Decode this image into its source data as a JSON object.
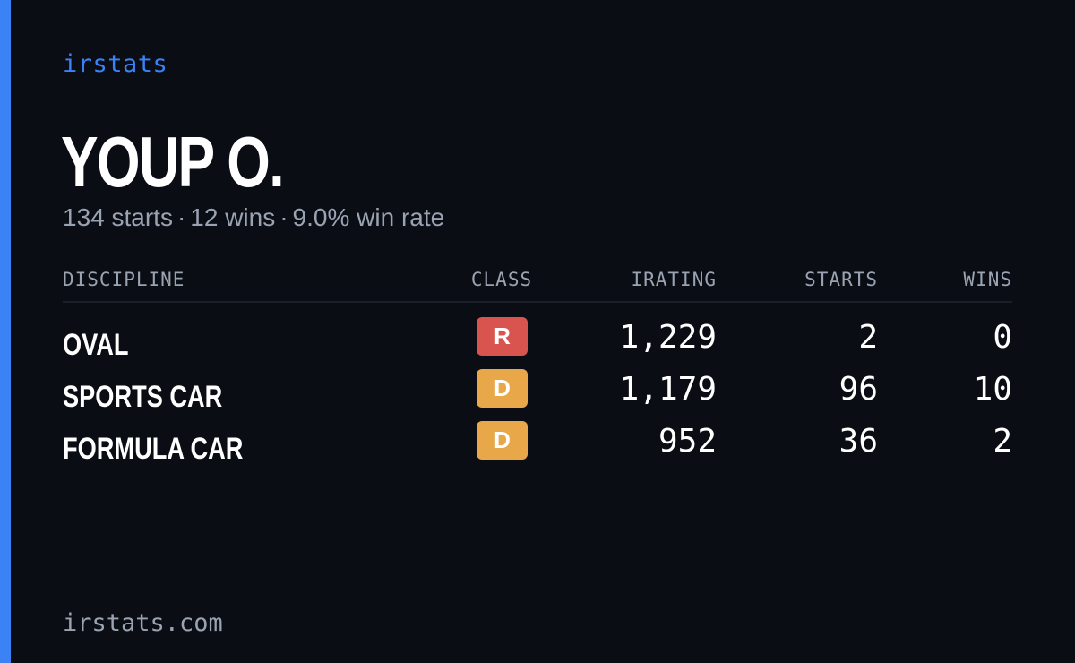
{
  "brand": "irstats",
  "driver": {
    "name": "YOUP O.",
    "starts": "134 starts",
    "wins": "12 wins",
    "win_rate": "9.0% win rate",
    "separator": "·"
  },
  "table": {
    "headers": {
      "discipline": "DISCIPLINE",
      "class": "CLASS",
      "irating": "IRATING",
      "starts": "STARTS",
      "wins": "WINS"
    },
    "rows": [
      {
        "discipline": "OVAL",
        "class": "R",
        "class_color": "#d9534f",
        "irating": "1,229",
        "starts": "2",
        "wins": "0"
      },
      {
        "discipline": "SPORTS CAR",
        "class": "D",
        "class_color": "#e8a84a",
        "irating": "1,179",
        "starts": "96",
        "wins": "10"
      },
      {
        "discipline": "FORMULA CAR",
        "class": "D",
        "class_color": "#e8a84a",
        "irating": "952",
        "starts": "36",
        "wins": "2"
      }
    ]
  },
  "footer": "irstats.com",
  "colors": {
    "accent": "#3b82f6",
    "background": "#0a0d14",
    "muted": "#9aa3b2"
  }
}
